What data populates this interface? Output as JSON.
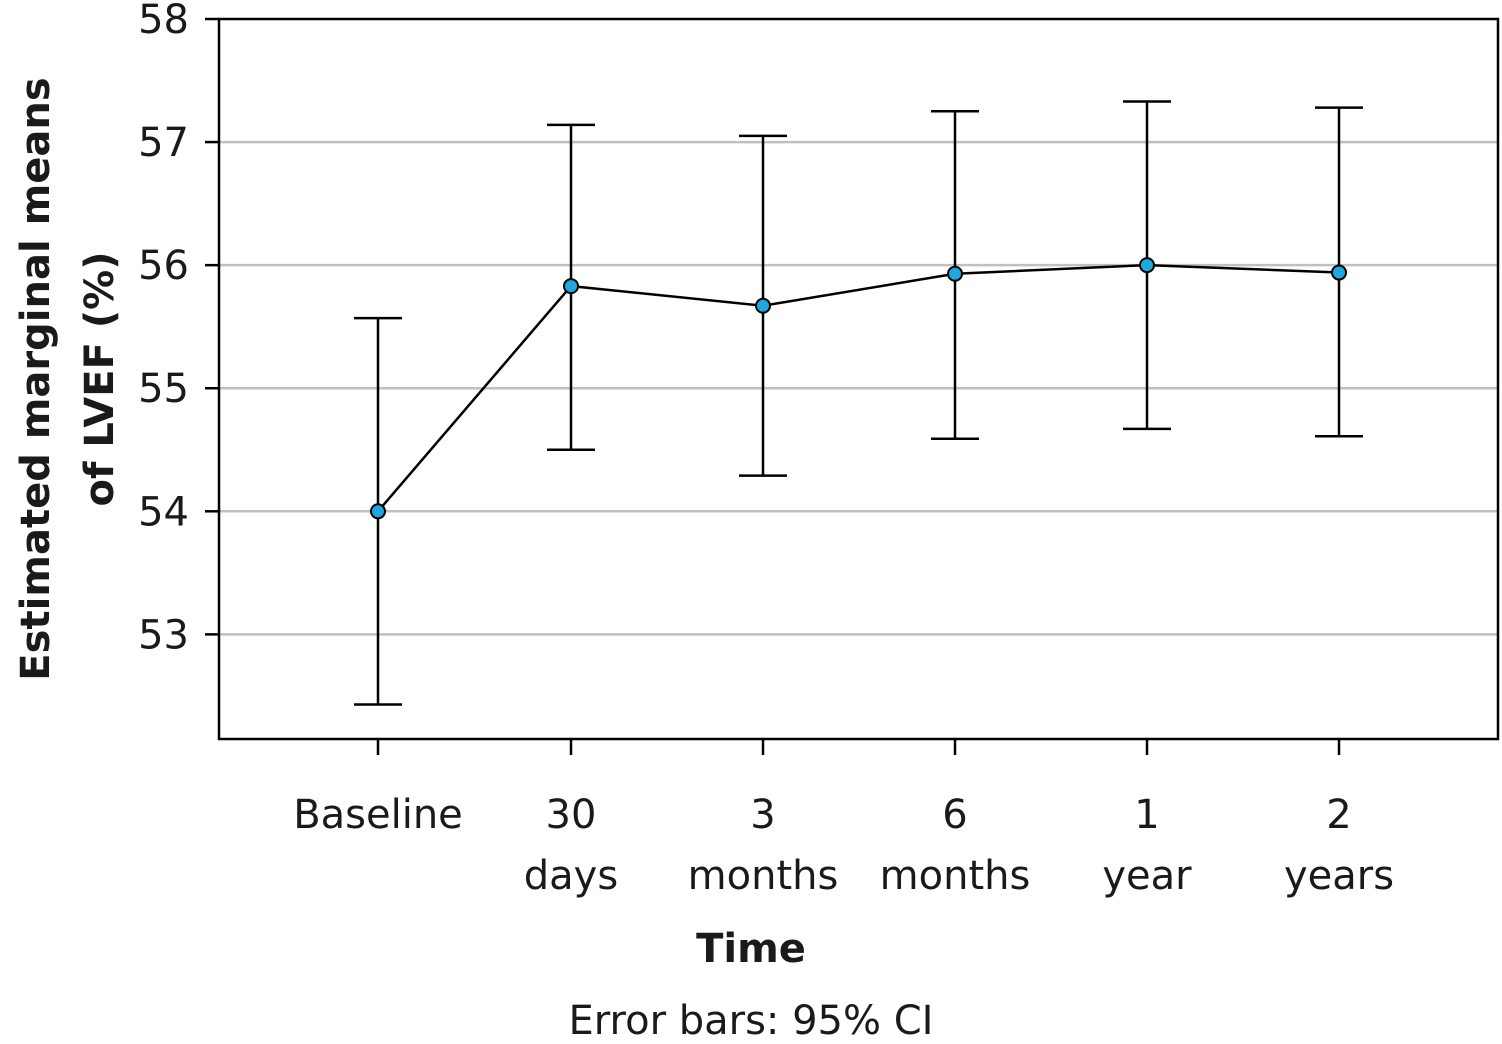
{
  "chart_data": {
    "type": "line",
    "title": "",
    "xlabel": "Time",
    "ylabel": "Estimated marginal means of LVEF (%)",
    "ylabel_lines": [
      "Estimated marginal means",
      "of LVEF (%)"
    ],
    "footnote": "Error bars: 95% CI",
    "categories": [
      "Baseline",
      "30 days",
      "3 months",
      "6 months",
      "1 year",
      "2 years"
    ],
    "category_lines": [
      [
        "Baseline"
      ],
      [
        "30",
        "days"
      ],
      [
        "3",
        "months"
      ],
      [
        "6",
        "months"
      ],
      [
        "1",
        "year"
      ],
      [
        "2",
        "years"
      ]
    ],
    "series": [
      {
        "values": [
          54.0,
          55.83,
          55.67,
          55.93,
          56.0,
          55.94
        ],
        "ci_lower": [
          52.43,
          54.5,
          54.29,
          54.59,
          54.67,
          54.61
        ],
        "ci_upper": [
          55.57,
          57.14,
          57.05,
          57.25,
          57.33,
          57.28
        ]
      }
    ],
    "ylim": [
      52.15,
      58
    ],
    "yticks": [
      53,
      54,
      55,
      56,
      57,
      58
    ],
    "grid": true,
    "colors": {
      "marker_fill": "#1ea7e1",
      "line": "#000000",
      "grid": "#c0c0c0",
      "axis": "#000000"
    }
  }
}
